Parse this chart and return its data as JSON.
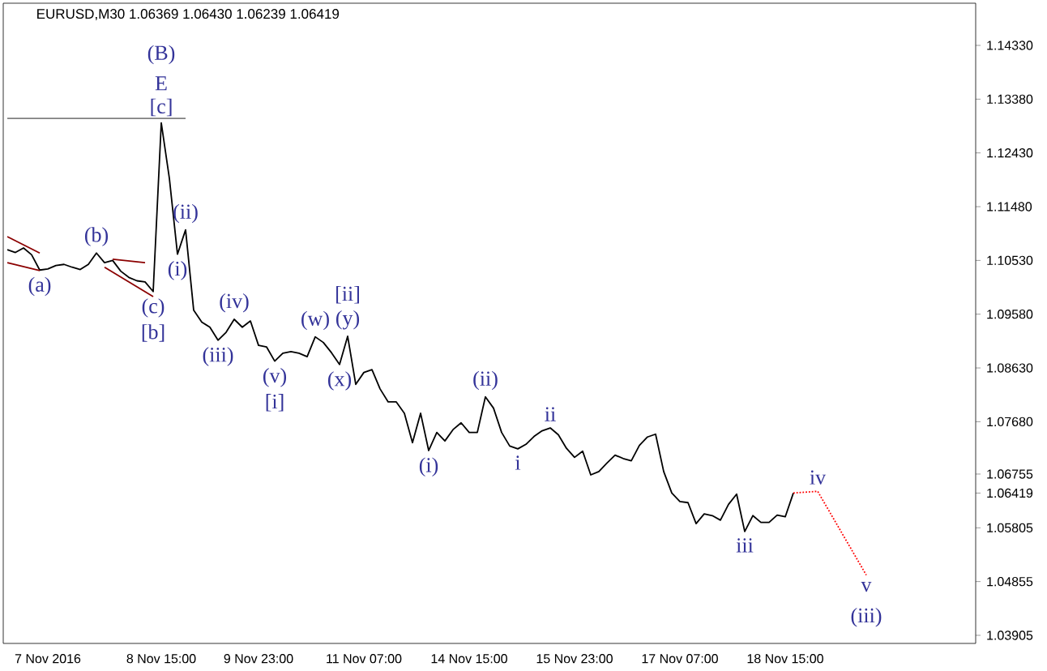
{
  "chart_data": {
    "type": "line",
    "title": "EURUSD,M30  1.06369 1.06430 1.06239 1.06419",
    "categories": [
      null,
      null,
      null,
      null,
      null,
      "7 Nov 2016",
      null,
      null,
      null,
      null,
      null,
      null,
      null,
      null,
      null,
      null,
      null,
      null,
      null,
      "8 Nov 15:00",
      null,
      null,
      null,
      null,
      null,
      null,
      null,
      null,
      null,
      null,
      null,
      "9 Nov 23:00",
      null,
      null,
      null,
      null,
      null,
      null,
      null,
      null,
      null,
      null,
      null,
      null,
      "11 Nov 07:00",
      null,
      null,
      null,
      null,
      null,
      null,
      null,
      null,
      null,
      null,
      null,
      null,
      "14 Nov 15:00",
      null,
      null,
      null,
      null,
      null,
      null,
      null,
      null,
      null,
      null,
      null,
      null,
      "15 Nov 23:00",
      null,
      null,
      null,
      null,
      null,
      null,
      null,
      null,
      null,
      null,
      null,
      null,
      "17 Nov 07:00",
      null,
      null,
      null,
      null,
      null,
      null,
      null,
      null,
      null,
      null,
      null,
      null,
      "18 Nov 15:00",
      null,
      null,
      null,
      null,
      null,
      null,
      null,
      null,
      null,
      null,
      null,
      null,
      null,
      null,
      null,
      null,
      null,
      null,
      null,
      null,
      null,
      null,
      null
    ],
    "series": [
      {
        "color": "#000000",
        "values": [
          1.1072,
          1.1067,
          1.1075,
          1.1063,
          1.1036,
          1.1038,
          1.1044,
          1.1046,
          1.1041,
          1.1037,
          1.1046,
          1.1066,
          1.1049,
          1.1053,
          1.1034,
          1.1023,
          1.1017,
          1.1015,
          1.0998,
          1.1296,
          1.1198,
          1.1064,
          1.1107,
          1.0965,
          1.0944,
          1.0935,
          1.0912,
          1.0926,
          1.0949,
          1.0935,
          1.0946,
          1.0903,
          1.09,
          1.0875,
          1.0889,
          1.0892,
          1.0889,
          1.0883,
          1.0918,
          1.0908,
          1.089,
          1.0869,
          1.0919,
          1.0834,
          1.0855,
          1.086,
          1.0826,
          1.0803,
          1.0803,
          1.0783,
          1.0731,
          1.0783,
          1.0717,
          1.0749,
          1.0734,
          1.0754,
          1.0766,
          1.0749,
          1.0749,
          1.0812,
          1.0792,
          1.0749,
          1.0725,
          1.072,
          1.0728,
          1.0742,
          1.0752,
          1.0757,
          1.0745,
          1.0721,
          1.0705,
          1.0716,
          1.0674,
          1.068,
          1.0695,
          1.0709,
          1.0703,
          1.0699,
          1.0726,
          1.0741,
          1.0746,
          1.068,
          1.0642,
          1.0627,
          1.0625,
          1.0588,
          1.0605,
          1.0602,
          1.0594,
          1.0622,
          1.064,
          1.0574,
          1.0602,
          1.059,
          1.059,
          1.0603,
          1.06,
          1.0642,
          null,
          null,
          null,
          null,
          null,
          null,
          null,
          null,
          null,
          null,
          null,
          null,
          null,
          null,
          null,
          null,
          null,
          null,
          null,
          null,
          null,
          null
        ]
      },
      {
        "color": "#808080",
        "values": [
          1.1304,
          null,
          null,
          null,
          null,
          null,
          null,
          null,
          null,
          null,
          null,
          null,
          null,
          null,
          null,
          null,
          null,
          null,
          null,
          null,
          null,
          null,
          1.1304,
          null,
          null,
          null,
          null,
          null,
          null,
          null,
          null,
          null,
          null,
          null,
          null,
          null,
          null,
          null,
          null,
          null,
          null,
          null,
          null,
          null,
          null,
          null,
          null,
          null,
          null,
          null,
          null,
          null,
          null,
          null,
          null,
          null,
          null,
          null,
          null,
          null,
          null,
          null,
          null,
          null,
          null,
          null,
          null,
          null,
          null,
          null,
          null,
          null,
          null,
          null,
          null,
          null,
          null,
          null,
          null,
          null,
          null,
          null,
          null,
          null,
          null,
          null,
          null,
          null,
          null,
          null,
          null,
          null,
          null,
          null,
          null,
          null,
          null,
          null,
          null,
          null,
          null,
          null,
          null,
          null,
          null,
          null,
          null,
          null,
          null,
          null,
          null,
          null,
          null,
          null,
          null,
          null,
          null,
          null,
          null,
          null
        ]
      },
      {
        "color": "#8b0000",
        "values": [
          1.1095,
          null,
          null,
          null,
          1.1066,
          null,
          null,
          null,
          null,
          null,
          null,
          null,
          null,
          null,
          null,
          null,
          null,
          null,
          null,
          null,
          null,
          null,
          null,
          null,
          null,
          null,
          null,
          null,
          null,
          null,
          null,
          null,
          null,
          null,
          null,
          null,
          null,
          null,
          null,
          null,
          null,
          null,
          null,
          null,
          null,
          null,
          null,
          null,
          null,
          null,
          null,
          null,
          null,
          null,
          null,
          null,
          null,
          null,
          null,
          null,
          null,
          null,
          null,
          null,
          null,
          null,
          null,
          null,
          null,
          null,
          null,
          null,
          null,
          null,
          null,
          null,
          null,
          null,
          null,
          null,
          null,
          null,
          null,
          null,
          null,
          null,
          null,
          null,
          null,
          null,
          null,
          null,
          null,
          null,
          null,
          null,
          null,
          null,
          null,
          null,
          null,
          null,
          null,
          null,
          null,
          null,
          null,
          null,
          null,
          null,
          null,
          null,
          null,
          null,
          null,
          null,
          null,
          null,
          null,
          null
        ]
      },
      {
        "color": "#8b0000",
        "values": [
          1.1049,
          null,
          null,
          null,
          1.1035,
          null,
          null,
          null,
          null,
          null,
          null,
          null,
          null,
          null,
          null,
          null,
          null,
          null,
          null,
          null,
          null,
          null,
          null,
          null,
          null,
          null,
          null,
          null,
          null,
          null,
          null,
          null,
          null,
          null,
          null,
          null,
          null,
          null,
          null,
          null,
          null,
          null,
          null,
          null,
          null,
          null,
          null,
          null,
          null,
          null,
          null,
          null,
          null,
          null,
          null,
          null,
          null,
          null,
          null,
          null,
          null,
          null,
          null,
          null,
          null,
          null,
          null,
          null,
          null,
          null,
          null,
          null,
          null,
          null,
          null,
          null,
          null,
          null,
          null,
          null,
          null,
          null,
          null,
          null,
          null,
          null,
          null,
          null,
          null,
          null,
          null,
          null,
          null,
          null,
          null,
          null,
          null,
          null,
          null,
          null,
          null,
          null,
          null,
          null,
          null,
          null,
          null,
          null,
          null,
          null,
          null,
          null,
          null,
          null,
          null,
          null,
          null,
          null,
          null,
          null
        ]
      },
      {
        "color": "#8b0000",
        "values": [
          null,
          null,
          null,
          null,
          null,
          null,
          null,
          null,
          null,
          null,
          null,
          null,
          null,
          1.1055,
          null,
          null,
          null,
          1.1049,
          null,
          null,
          null,
          null,
          null,
          null,
          null,
          null,
          null,
          null,
          null,
          null,
          null,
          null,
          null,
          null,
          null,
          null,
          null,
          null,
          null,
          null,
          null,
          null,
          null,
          null,
          null,
          null,
          null,
          null,
          null,
          null,
          null,
          null,
          null,
          null,
          null,
          null,
          null,
          null,
          null,
          null,
          null,
          null,
          null,
          null,
          null,
          null,
          null,
          null,
          null,
          null,
          null,
          null,
          null,
          null,
          null,
          null,
          null,
          null,
          null,
          null,
          null,
          null,
          null,
          null,
          null,
          null,
          null,
          null,
          null,
          null,
          null,
          null,
          null,
          null,
          null,
          null,
          null,
          null,
          null,
          null,
          null,
          null,
          null,
          null,
          null,
          null,
          null,
          null,
          null,
          null,
          null,
          null,
          null,
          null,
          null,
          null,
          null,
          null,
          null,
          null
        ]
      },
      {
        "color": "#8b0000",
        "values": [
          null,
          null,
          null,
          null,
          null,
          null,
          null,
          null,
          null,
          null,
          null,
          null,
          1.1041,
          null,
          null,
          null,
          null,
          null,
          1.0989,
          null,
          null,
          null,
          null,
          null,
          null,
          null,
          null,
          null,
          null,
          null,
          null,
          null,
          null,
          null,
          null,
          null,
          null,
          null,
          null,
          null,
          null,
          null,
          null,
          null,
          null,
          null,
          null,
          null,
          null,
          null,
          null,
          null,
          null,
          null,
          null,
          null,
          null,
          null,
          null,
          null,
          null,
          null,
          null,
          null,
          null,
          null,
          null,
          null,
          null,
          null,
          null,
          null,
          null,
          null,
          null,
          null,
          null,
          null,
          null,
          null,
          null,
          null,
          null,
          null,
          null,
          null,
          null,
          null,
          null,
          null,
          null,
          null,
          null,
          null,
          null,
          null,
          null,
          null,
          null,
          null,
          null,
          null,
          null,
          null,
          null,
          null,
          null,
          null,
          null,
          null,
          null,
          null,
          null,
          null,
          null,
          null,
          null,
          null,
          null,
          null
        ]
      },
      {
        "color": "#ff0000",
        "line_style": "dotted",
        "values": [
          null,
          null,
          null,
          null,
          null,
          null,
          null,
          null,
          null,
          null,
          null,
          null,
          null,
          null,
          null,
          null,
          null,
          null,
          null,
          null,
          null,
          null,
          null,
          null,
          null,
          null,
          null,
          null,
          null,
          null,
          null,
          null,
          null,
          null,
          null,
          null,
          null,
          null,
          null,
          null,
          null,
          null,
          null,
          null,
          null,
          null,
          null,
          null,
          null,
          null,
          null,
          null,
          null,
          null,
          null,
          null,
          null,
          null,
          null,
          null,
          null,
          null,
          null,
          null,
          null,
          null,
          null,
          null,
          null,
          null,
          null,
          null,
          null,
          null,
          null,
          null,
          null,
          null,
          null,
          null,
          null,
          null,
          null,
          null,
          null,
          null,
          null,
          null,
          null,
          null,
          null,
          null,
          null,
          null,
          null,
          null,
          null,
          1.0642,
          null,
          null,
          1.0645,
          null,
          null,
          null,
          null,
          null,
          1.0497,
          null,
          null,
          null,
          null,
          null,
          null,
          null,
          null,
          null,
          null,
          null,
          null,
          null
        ]
      }
    ],
    "ylim": [
      1.03762,
      1.15075
    ],
    "yticks": [
      {
        "value": 1.03905,
        "label": "1.03905"
      },
      {
        "value": 1.04855,
        "label": "1.04855"
      },
      {
        "value": 1.05805,
        "label": "1.05805"
      },
      {
        "value": 1.06419,
        "label": "1.06419"
      },
      {
        "value": 1.06755,
        "label": "1.06755"
      },
      {
        "value": 1.0768,
        "label": "1.07680"
      },
      {
        "value": 1.0863,
        "label": "1.08630"
      },
      {
        "value": 1.0958,
        "label": "1.09580"
      },
      {
        "value": 1.1053,
        "label": "1.10530"
      },
      {
        "value": 1.1148,
        "label": "1.11480"
      },
      {
        "value": 1.1243,
        "label": "1.12430"
      },
      {
        "value": 1.1338,
        "label": "1.13380"
      },
      {
        "value": 1.1433,
        "label": "1.14330"
      }
    ],
    "annotations": [
      {
        "text": "[c]",
        "y": 1.1296
      },
      {
        "text": "E",
        "y": 1.1296
      },
      {
        "text": "(B)",
        "y": 1.1296
      },
      {
        "text": "(a)",
        "y": 1.1036
      },
      {
        "text": "(b)",
        "y": 1.1066
      },
      {
        "text": "(c)",
        "y": 1.0998
      },
      {
        "text": "[b]",
        "y": 1.0998
      },
      {
        "text": "(i)",
        "y": 1.1064
      },
      {
        "text": "(ii)",
        "y": 1.1107
      },
      {
        "text": "(iii)",
        "y": 1.0912
      },
      {
        "text": "(iv)",
        "y": 1.0949
      },
      {
        "text": "(v)",
        "y": 1.0875
      },
      {
        "text": "[i]",
        "y": 1.0875
      },
      {
        "text": "(w)",
        "y": 1.0918
      },
      {
        "text": "(x)",
        "y": 1.0869
      },
      {
        "text": "(y)",
        "y": 1.0919
      },
      {
        "text": "[ii]",
        "y": 1.0919
      },
      {
        "text": "(i)",
        "y": 1.0717
      },
      {
        "text": "(ii)",
        "y": 1.0812
      },
      {
        "text": "i",
        "y": 1.072
      },
      {
        "text": "ii",
        "y": 1.0757
      },
      {
        "text": "iii",
        "y": 1.0574
      },
      {
        "text": "iv",
        "y": 1.0645
      },
      {
        "text": "v",
        "y": 1.0497
      },
      {
        "text": "(iii)",
        "y": 1.0497
      }
    ]
  }
}
